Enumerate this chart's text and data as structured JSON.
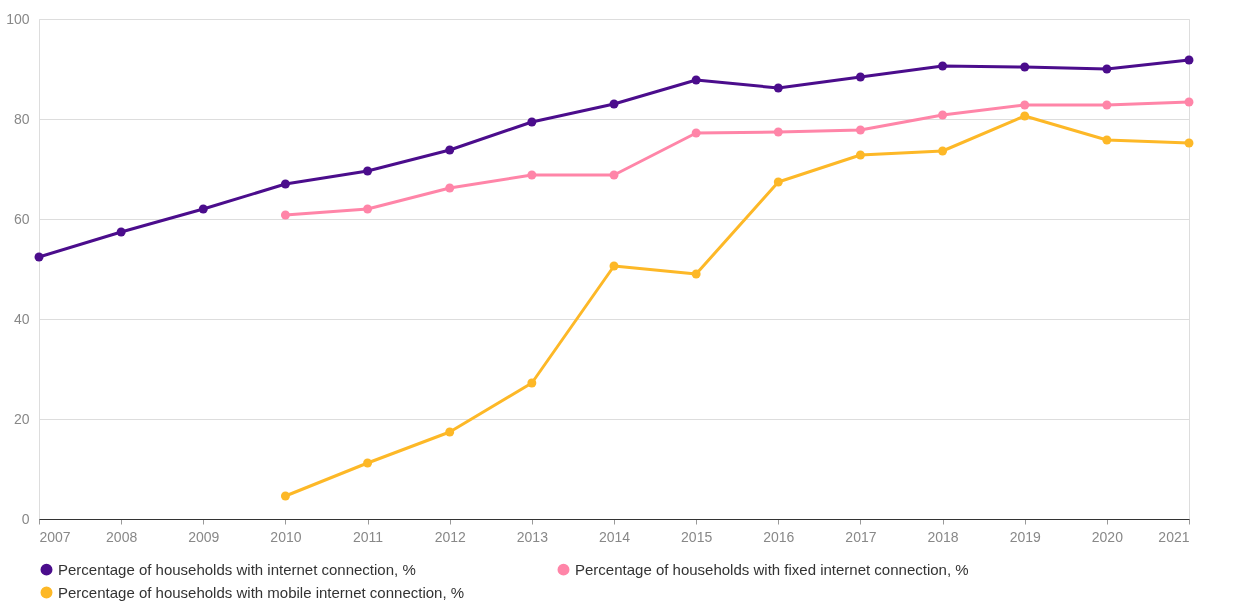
{
  "chart_data": {
    "type": "line",
    "categories": [
      "2007",
      "2008",
      "2009",
      "2010",
      "2011",
      "2012",
      "2013",
      "2014",
      "2015",
      "2016",
      "2017",
      "2018",
      "2019",
      "2020",
      "2021"
    ],
    "series": [
      {
        "name": "Percentage of households with internet connection, %",
        "color": "#4b0d8c",
        "values": [
          52.4,
          57.4,
          62,
          67,
          69.6,
          73.8,
          79.4,
          83,
          87.8,
          86.2,
          88.4,
          90.6,
          90.4,
          90,
          91.8
        ]
      },
      {
        "name": "Percentage of households with fixed internet connection, %",
        "color": "#ff85a8",
        "values": [
          null,
          null,
          null,
          60.8,
          62,
          66.2,
          68.8,
          68.8,
          77.2,
          77.4,
          77.8,
          80.8,
          82.8,
          82.8,
          83.4
        ]
      },
      {
        "name": "Percentage of households with mobile internet connection, %",
        "color": "#fdb827",
        "values": [
          null,
          null,
          null,
          4.6,
          11.2,
          17.4,
          27.2,
          50.6,
          49,
          67.4,
          72.8,
          73.6,
          80.6,
          75.8,
          75.2
        ]
      }
    ],
    "ylim": [
      0,
      100
    ],
    "yticks": [
      0,
      20,
      40,
      60,
      80,
      100
    ],
    "grid": "y",
    "legend": "bottom",
    "marker": "circle",
    "line_style": "solid"
  }
}
